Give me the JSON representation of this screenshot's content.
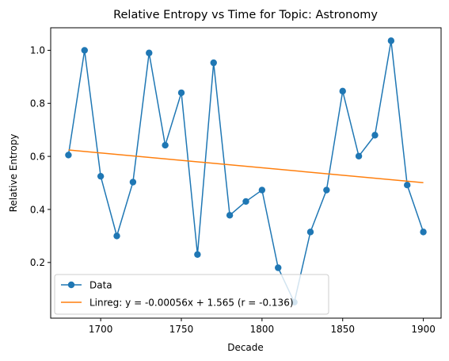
{
  "chart_data": {
    "type": "line",
    "title": "Relative Entropy vs Time for Topic: Astronomy",
    "xlabel": "Decade",
    "ylabel": "Relative Entropy",
    "xlim": [
      1669,
      1911
    ],
    "ylim": [
      -0.01,
      1.085
    ],
    "xticks": [
      1700,
      1750,
      1800,
      1850,
      1900
    ],
    "yticks": [
      0.2,
      0.4,
      0.6,
      0.8,
      1.0
    ],
    "xtick_labels": [
      "1700",
      "1750",
      "1800",
      "1850",
      "1900"
    ],
    "ytick_labels": [
      "0.2",
      "0.4",
      "0.6",
      "0.8",
      "1.0"
    ],
    "series": [
      {
        "name": "Data",
        "kind": "line-marker",
        "color": "#1f77b4",
        "x": [
          1680,
          1690,
          1700,
          1710,
          1720,
          1730,
          1740,
          1750,
          1760,
          1770,
          1780,
          1790,
          1800,
          1810,
          1820,
          1830,
          1840,
          1850,
          1860,
          1870,
          1880,
          1890,
          1900
        ],
        "y": [
          0.605,
          1.0,
          0.525,
          0.3,
          0.503,
          0.99,
          0.642,
          0.84,
          0.23,
          0.953,
          0.378,
          0.43,
          0.473,
          0.18,
          0.05,
          0.315,
          0.473,
          0.846,
          0.601,
          0.68,
          1.036,
          0.492,
          0.315
        ]
      },
      {
        "name": "Linreg: y = -0.00056x + 1.565 (r = -0.136)",
        "kind": "line",
        "color": "#ff7f0e",
        "x": [
          1680,
          1900
        ],
        "y": [
          0.6242,
          0.501
        ]
      }
    ],
    "legend_position": "lower-left",
    "grid": false
  }
}
